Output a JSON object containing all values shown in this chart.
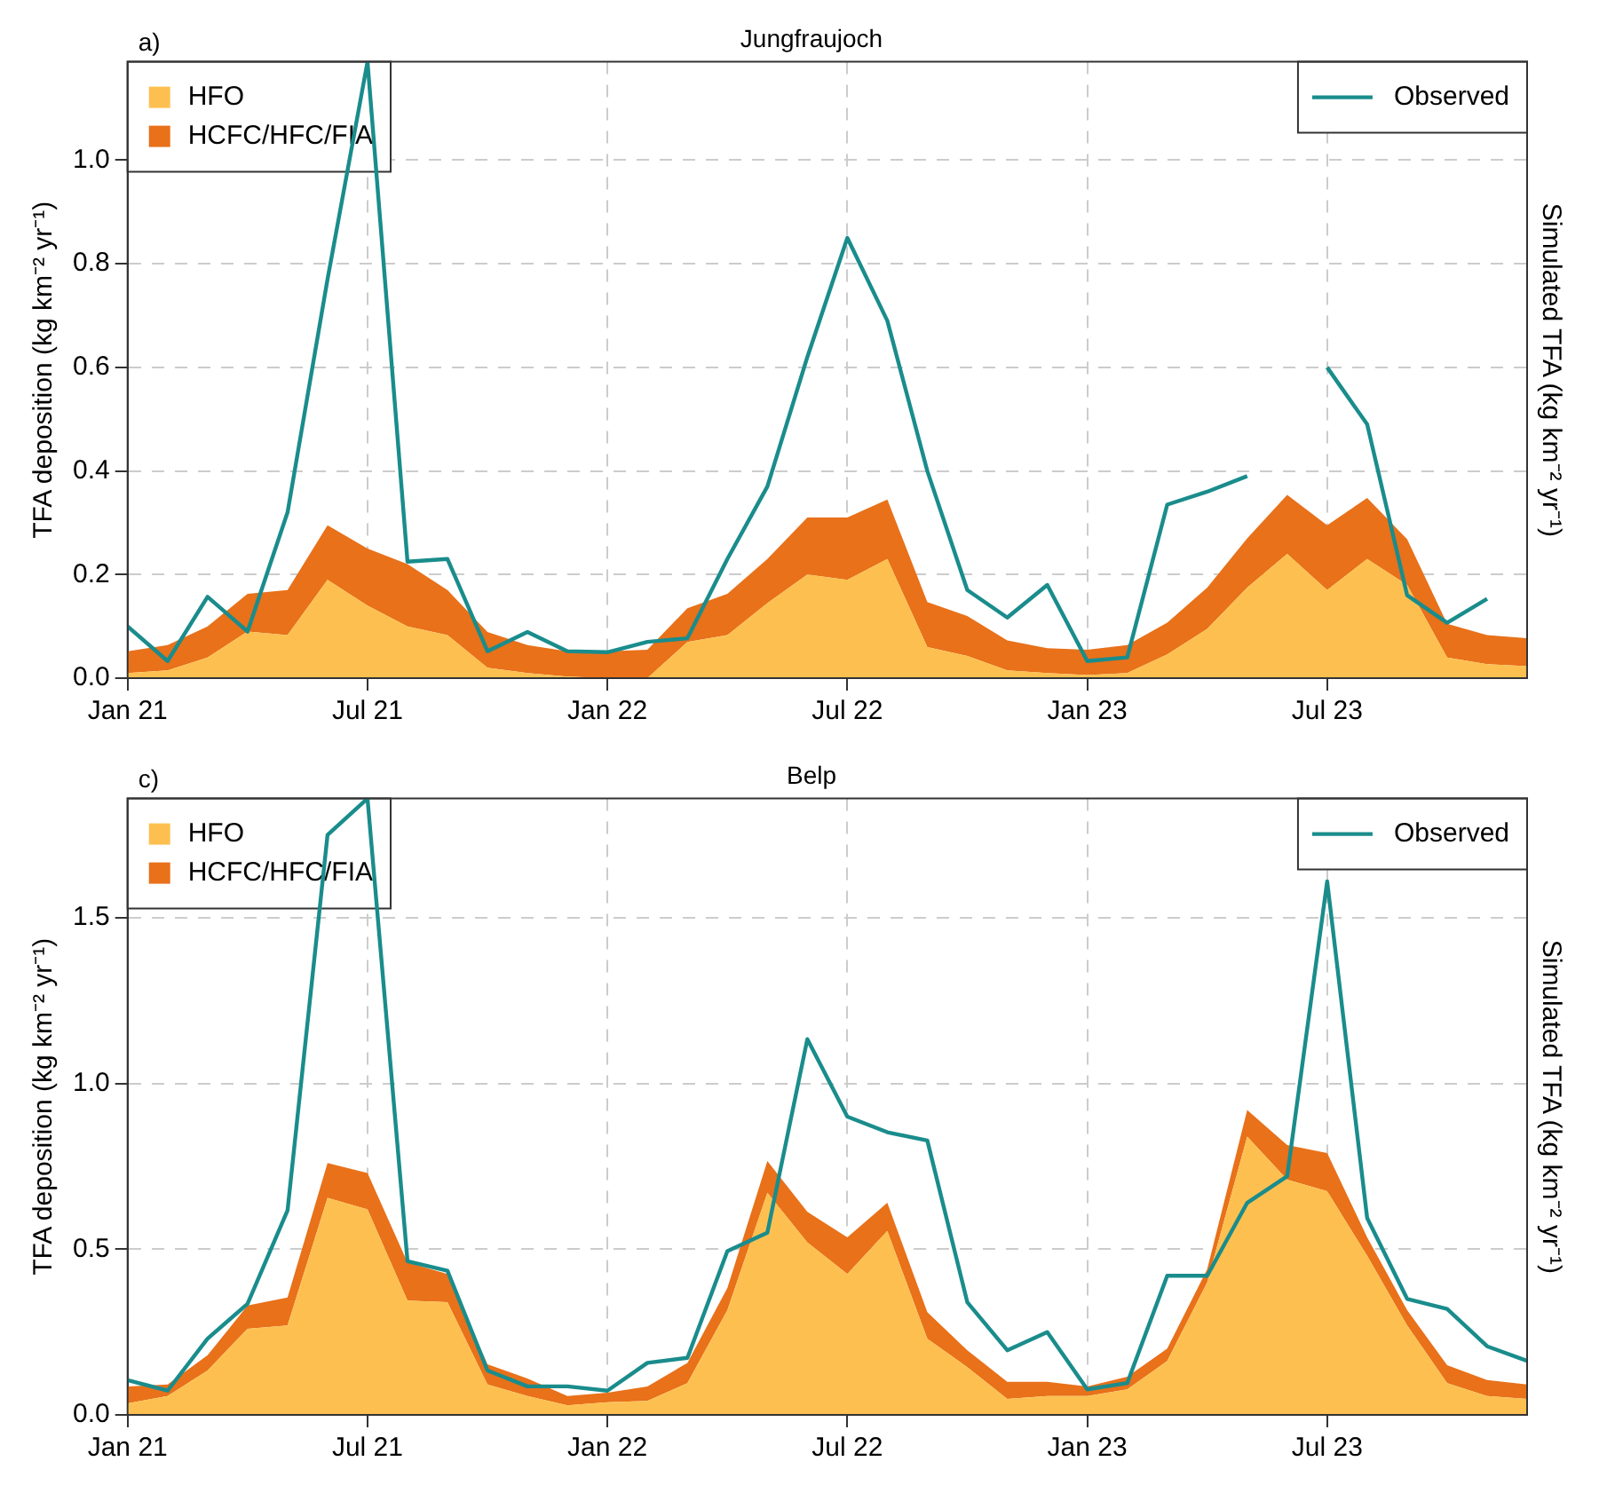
{
  "chart_data": [
    {
      "type": "area",
      "title": "Jungfraujoch",
      "annotations": [
        "a)"
      ],
      "ylabel": "TFA deposition (kg km⁻² yr⁻¹)",
      "y2label": "Simulated TFA (kg km⁻² yr⁻¹)",
      "stacked": true,
      "grid": true,
      "legend": "top left",
      "x": [
        "2021-01",
        "2021-02",
        "2021-03",
        "2021-04",
        "2021-05",
        "2021-06",
        "2021-07",
        "2021-08",
        "2021-09",
        "2021-10",
        "2021-11",
        "2021-12",
        "2022-01",
        "2022-02",
        "2022-03",
        "2022-04",
        "2022-05",
        "2022-06",
        "2022-07",
        "2022-08",
        "2022-09",
        "2022-10",
        "2022-11",
        "2022-12",
        "2023-01",
        "2023-02",
        "2023-03",
        "2023-04",
        "2023-05",
        "2023-06",
        "2023-07",
        "2023-08",
        "2023-09",
        "2023-10",
        "2023-11",
        "2023-12"
      ],
      "xlim": [
        "2021-01",
        "2023-12"
      ],
      "xticks": [
        {
          "value": "2021-01",
          "label": "Jan 21"
        },
        {
          "value": "2021-07",
          "label": "Jul 21"
        },
        {
          "value": "2022-01",
          "label": "Jan 22"
        },
        {
          "value": "2022-07",
          "label": "Jul 22"
        },
        {
          "value": "2023-01",
          "label": "Jan 23"
        },
        {
          "value": "2023-07",
          "label": "Jul 23"
        }
      ],
      "ylim": [
        0,
        1.19
      ],
      "yticks": [
        {
          "value": 0,
          "label": "0.0"
        },
        {
          "value": 0.2,
          "label": "0.2"
        },
        {
          "value": 0.4,
          "label": "0.4"
        },
        {
          "value": 0.6,
          "label": "0.6"
        },
        {
          "value": 0.8,
          "label": "0.8"
        },
        {
          "value": 1,
          "label": "1.0"
        }
      ],
      "series": [
        {
          "name": "Observed",
          "type": "line",
          "color": "#1a8c8c",
          "values": [
            0.1,
            0.033,
            0.157,
            0.09,
            0.32,
            0.77,
            1.19,
            0.225,
            0.23,
            0.052,
            0.089,
            0.052,
            0.05,
            0.07,
            0.077,
            0.23,
            0.37,
            0.62,
            0.85,
            0.69,
            0.4,
            0.17,
            0.117,
            0.18,
            0.033,
            0.04,
            0.335,
            0.36,
            0.39,
            null,
            0.6,
            0.49,
            0.16,
            0.107,
            0.153,
            null
          ]
        },
        {
          "name": "HFO",
          "type": "area",
          "color": "#fdc050",
          "values": [
            0.01,
            0.015,
            0.04,
            0.09,
            0.083,
            0.19,
            0.14,
            0.1,
            0.083,
            0.02,
            0.01,
            0.003,
            0,
            0,
            0.07,
            0.083,
            0.145,
            0.2,
            0.19,
            0.23,
            0.06,
            0.043,
            0.015,
            0.01,
            0.006,
            0.01,
            0.046,
            0.095,
            0.175,
            0.24,
            0.17,
            0.23,
            0.18,
            0.04,
            0.027,
            0.023
          ]
        },
        {
          "name": "HCFC/HFC/FIA",
          "type": "area",
          "color": "#e8711a",
          "values": [
            0.042,
            0.049,
            0.06,
            0.073,
            0.087,
            0.105,
            0.11,
            0.12,
            0.087,
            0.069,
            0.054,
            0.049,
            0.052,
            0.055,
            0.065,
            0.08,
            0.085,
            0.11,
            0.12,
            0.115,
            0.087,
            0.077,
            0.058,
            0.048,
            0.049,
            0.054,
            0.061,
            0.08,
            0.095,
            0.114,
            0.125,
            0.118,
            0.088,
            0.065,
            0.056,
            0.054
          ]
        }
      ]
    },
    {
      "type": "area",
      "title": "Belp",
      "annotations": [
        "c)"
      ],
      "ylabel": "TFA deposition (kg km⁻² yr⁻¹)",
      "y2label": "Simulated TFA (kg km⁻² yr⁻¹)",
      "stacked": true,
      "grid": true,
      "legend": "top left",
      "x": [
        "2021-01",
        "2021-02",
        "2021-03",
        "2021-04",
        "2021-05",
        "2021-06",
        "2021-07",
        "2021-08",
        "2021-09",
        "2021-10",
        "2021-11",
        "2021-12",
        "2022-01",
        "2022-02",
        "2022-03",
        "2022-04",
        "2022-05",
        "2022-06",
        "2022-07",
        "2022-08",
        "2022-09",
        "2022-10",
        "2022-11",
        "2022-12",
        "2023-01",
        "2023-02",
        "2023-03",
        "2023-04",
        "2023-05",
        "2023-06",
        "2023-07",
        "2023-08",
        "2023-09",
        "2023-10",
        "2023-11",
        "2023-12"
      ],
      "xlim": [
        "2021-01",
        "2023-12"
      ],
      "xticks": [
        {
          "value": "2021-01",
          "label": "Jan 21"
        },
        {
          "value": "2021-07",
          "label": "Jul 21"
        },
        {
          "value": "2022-01",
          "label": "Jan 22"
        },
        {
          "value": "2022-07",
          "label": "Jul 22"
        },
        {
          "value": "2023-01",
          "label": "Jan 23"
        },
        {
          "value": "2023-07",
          "label": "Jul 23"
        }
      ],
      "ylim": [
        0,
        1.86
      ],
      "yticks": [
        {
          "value": 0,
          "label": "0.0"
        },
        {
          "value": 0.5,
          "label": "0.5"
        },
        {
          "value": 1,
          "label": "1.0"
        },
        {
          "value": 1.5,
          "label": "1.5"
        }
      ],
      "series": [
        {
          "name": "Observed",
          "type": "line",
          "color": "#1a8c8c",
          "values": [
            0.105,
            0.073,
            0.23,
            0.335,
            0.617,
            1.75,
            1.86,
            0.464,
            0.435,
            0.134,
            0.086,
            0.086,
            0.073,
            0.157,
            0.172,
            0.494,
            0.55,
            1.134,
            0.9,
            0.853,
            0.828,
            0.34,
            0.195,
            0.25,
            0.077,
            0.096,
            0.42,
            0.42,
            0.64,
            0.72,
            1.61,
            0.594,
            0.35,
            0.32,
            0.207,
            0.163
          ]
        },
        {
          "name": "HFO",
          "type": "area",
          "color": "#fdc050",
          "values": [
            0.035,
            0.057,
            0.134,
            0.26,
            0.27,
            0.655,
            0.62,
            0.345,
            0.34,
            0.092,
            0.057,
            0.029,
            0.038,
            0.042,
            0.096,
            0.316,
            0.67,
            0.52,
            0.425,
            0.555,
            0.23,
            0.144,
            0.048,
            0.057,
            0.057,
            0.077,
            0.163,
            0.4,
            0.84,
            0.71,
            0.675,
            0.48,
            0.27,
            0.096,
            0.057,
            0.048
          ]
        },
        {
          "name": "HCFC/HFC/FIA",
          "type": "area",
          "color": "#e8711a",
          "values": [
            0.051,
            0.035,
            0.046,
            0.07,
            0.084,
            0.105,
            0.11,
            0.115,
            0.085,
            0.061,
            0.053,
            0.028,
            0.029,
            0.044,
            0.061,
            0.067,
            0.096,
            0.093,
            0.111,
            0.085,
            0.08,
            0.051,
            0.052,
            0.043,
            0.029,
            0.038,
            0.037,
            0.04,
            0.08,
            0.104,
            0.115,
            0.056,
            0.046,
            0.054,
            0.048,
            0.044
          ]
        }
      ]
    }
  ]
}
